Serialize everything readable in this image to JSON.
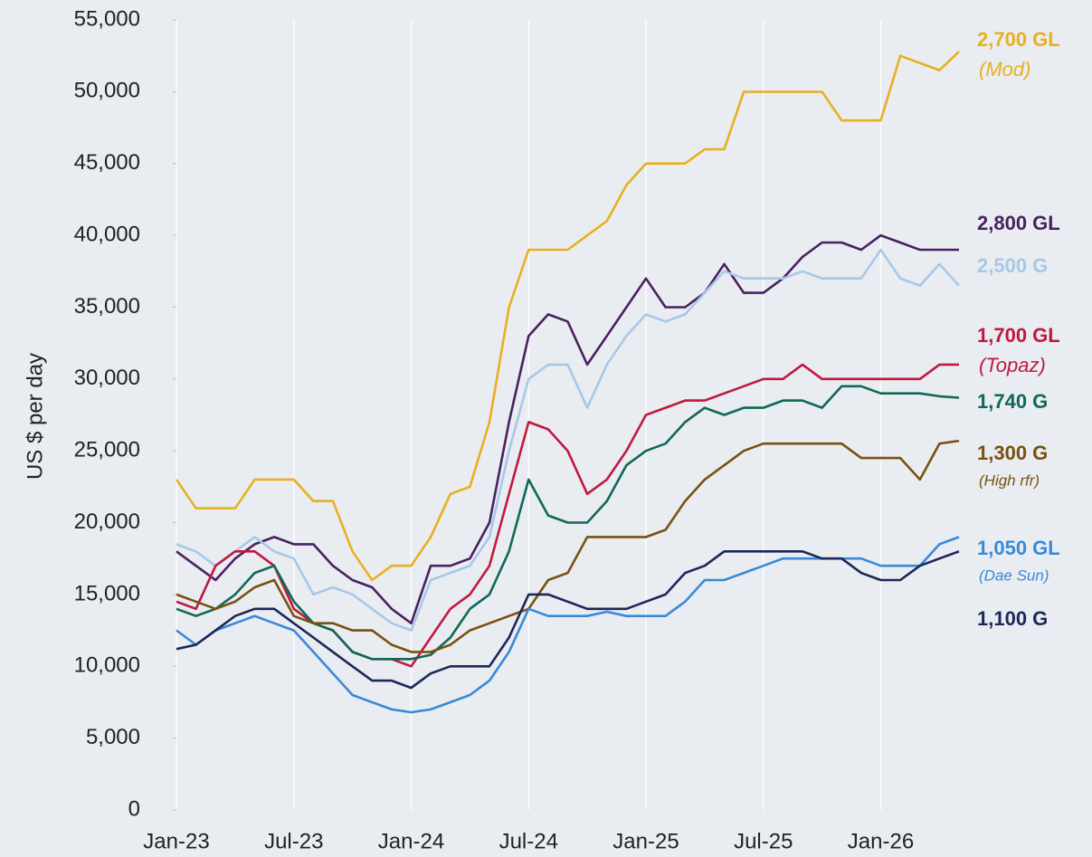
{
  "chart_data": {
    "type": "line",
    "y_label": "US $ per day",
    "x": [
      "2023-01",
      "2023-02",
      "2023-03",
      "2023-04",
      "2023-05",
      "2023-06",
      "2023-07",
      "2023-08",
      "2023-09",
      "2023-10",
      "2023-11",
      "2023-12",
      "2024-01",
      "2024-02",
      "2024-03",
      "2024-04",
      "2024-05",
      "2024-06",
      "2024-07",
      "2024-08",
      "2024-09",
      "2024-10",
      "2024-11",
      "2024-12",
      "2025-01",
      "2025-02",
      "2025-03",
      "2025-04",
      "2025-05",
      "2025-06",
      "2025-07",
      "2025-08",
      "2025-09",
      "2025-10",
      "2025-11",
      "2025-12",
      "2026-01",
      "2026-02",
      "2026-03",
      "2026-04",
      "2026-05"
    ],
    "xlim": [
      "2023-01",
      "2026-05"
    ],
    "xticks": [
      {
        "value": "2023-01",
        "label": "Jan-23"
      },
      {
        "value": "2023-07",
        "label": "Jul-23"
      },
      {
        "value": "2024-01",
        "label": "Jan-24"
      },
      {
        "value": "2024-07",
        "label": "Jul-24"
      },
      {
        "value": "2025-01",
        "label": "Jan-25"
      },
      {
        "value": "2025-07",
        "label": "Jul-25"
      },
      {
        "value": "2026-01",
        "label": "Jan-26"
      }
    ],
    "ylim": [
      0,
      55000
    ],
    "yticks": [
      0,
      {
        "value": 5000,
        "label": "5,000"
      },
      {
        "value": 10000,
        "label": "10,000"
      },
      {
        "value": 15000,
        "label": "15,000"
      },
      {
        "value": 20000,
        "label": "20,000"
      },
      {
        "value": 25000,
        "label": "25,000"
      },
      {
        "value": 30000,
        "label": "30,000"
      },
      {
        "value": 35000,
        "label": "35,000"
      },
      {
        "value": 40000,
        "label": "40,000"
      },
      {
        "value": 45000,
        "label": "45,000"
      },
      {
        "value": 50000,
        "label": "50,000"
      },
      {
        "value": 55000,
        "label": "55,000"
      }
    ],
    "grid": "x",
    "series": [
      {
        "name": "2,700 GL",
        "note": "(Mod)",
        "color": "#e8b020",
        "values": [
          23000,
          21000,
          21000,
          21000,
          23000,
          23000,
          23000,
          21500,
          21500,
          18000,
          16000,
          17000,
          17000,
          19000,
          22000,
          22500,
          27000,
          35000,
          39000,
          39000,
          39000,
          40000,
          41000,
          43500,
          45000,
          45000,
          45000,
          46000,
          46000,
          50000,
          50000,
          50000,
          50000,
          50000,
          48000,
          48000,
          48000,
          52500,
          52000,
          51500,
          52800
        ]
      },
      {
        "name": "2,800 GL",
        "color": "#4a2060",
        "values": [
          18000,
          17000,
          16000,
          17500,
          18500,
          19000,
          18500,
          18500,
          17000,
          16000,
          15500,
          14000,
          13000,
          17000,
          17000,
          17500,
          20000,
          27000,
          33000,
          34500,
          34000,
          31000,
          33000,
          35000,
          37000,
          35000,
          35000,
          36000,
          38000,
          36000,
          36000,
          37000,
          38500,
          39500,
          39500,
          39000,
          40000,
          39500,
          39000,
          39000,
          39000
        ]
      },
      {
        "name": "2,500 G",
        "color": "#a8c8e8",
        "values": [
          18500,
          18000,
          17000,
          18000,
          19000,
          18000,
          17500,
          15000,
          15500,
          15000,
          14000,
          13000,
          12500,
          16000,
          16500,
          17000,
          19000,
          25000,
          30000,
          31000,
          31000,
          28000,
          31000,
          33000,
          34500,
          34000,
          34500,
          36000,
          37500,
          37000,
          37000,
          37000,
          37500,
          37000,
          37000,
          37000,
          39000,
          37000,
          36500,
          38000,
          36500
        ]
      },
      {
        "name": "1,700 GL",
        "note": "(Topaz)",
        "color": "#c01840",
        "values": [
          14500,
          14000,
          17000,
          18000,
          18000,
          17000,
          14000,
          13000,
          12500,
          11000,
          10500,
          10500,
          10000,
          12000,
          14000,
          15000,
          17000,
          22000,
          27000,
          26500,
          25000,
          22000,
          23000,
          25000,
          27500,
          28000,
          28500,
          28500,
          29000,
          29500,
          30000,
          30000,
          31000,
          30000,
          30000,
          30000,
          30000,
          30000,
          30000,
          31000,
          31000
        ]
      },
      {
        "name": "1,740 G",
        "color": "#106858",
        "values": [
          14000,
          13500,
          14000,
          15000,
          16500,
          17000,
          14500,
          13000,
          12500,
          11000,
          10500,
          10500,
          10500,
          10800,
          12000,
          14000,
          15000,
          18000,
          23000,
          20500,
          20000,
          20000,
          21500,
          24000,
          25000,
          25500,
          27000,
          28000,
          27500,
          28000,
          28000,
          28500,
          28500,
          28000,
          29500,
          29500,
          29000,
          29000,
          29000,
          28800,
          28700
        ]
      },
      {
        "name": "1,300 G",
        "note": "(High rfr)",
        "color": "#7a5010",
        "values": [
          15000,
          14500,
          14000,
          14500,
          15500,
          16000,
          13500,
          13000,
          13000,
          12500,
          12500,
          11500,
          11000,
          11000,
          11500,
          12500,
          13000,
          13500,
          14000,
          16000,
          16500,
          19000,
          19000,
          19000,
          19000,
          19500,
          21500,
          23000,
          24000,
          25000,
          25500,
          25500,
          25500,
          25500,
          25500,
          24500,
          24500,
          24500,
          23000,
          25500,
          25700
        ]
      },
      {
        "name": "1,050 GL",
        "note": "(Dae Sun)",
        "color": "#3a88d8",
        "values": [
          12500,
          11500,
          12500,
          13000,
          13500,
          13000,
          12500,
          11000,
          9500,
          8000,
          7500,
          7000,
          6800,
          7000,
          7500,
          8000,
          9000,
          11000,
          14000,
          13500,
          13500,
          13500,
          13800,
          13500,
          13500,
          13500,
          14500,
          16000,
          16000,
          16500,
          17000,
          17500,
          17500,
          17500,
          17500,
          17500,
          17000,
          17000,
          17000,
          18500,
          19000
        ]
      },
      {
        "name": "1,100 G",
        "color": "#1a2858",
        "values": [
          11200,
          11500,
          12500,
          13500,
          14000,
          14000,
          13000,
          12000,
          11000,
          10000,
          9000,
          9000,
          8500,
          9500,
          10000,
          10000,
          10000,
          12000,
          15000,
          15000,
          14500,
          14000,
          14000,
          14000,
          14500,
          15000,
          16500,
          17000,
          18000,
          18000,
          18000,
          18000,
          18000,
          17500,
          17500,
          16500,
          16000,
          16000,
          17000,
          17500,
          18000
        ]
      }
    ]
  }
}
